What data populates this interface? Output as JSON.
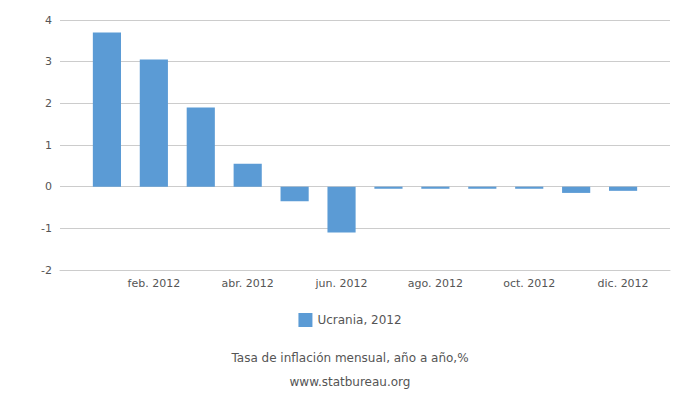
{
  "chart_data": {
    "type": "bar",
    "x": [
      1,
      2,
      3,
      4,
      5,
      6,
      7,
      8,
      9,
      10,
      11,
      12
    ],
    "series": [
      {
        "name": "Ucrania, 2012",
        "color": "#5b9bd5",
        "values": [
          3.7,
          3.05,
          1.9,
          0.55,
          -0.35,
          -1.1,
          -0.05,
          -0.05,
          -0.05,
          -0.05,
          -0.15,
          -0.1
        ]
      }
    ],
    "xlim": [
      0,
      13
    ],
    "xticks": [
      {
        "value": 2,
        "label": "feb. 2012"
      },
      {
        "value": 4,
        "label": "abr. 2012"
      },
      {
        "value": 6,
        "label": "jun. 2012"
      },
      {
        "value": 8,
        "label": "ago. 2012"
      },
      {
        "value": 10,
        "label": "oct. 2012"
      },
      {
        "value": 12,
        "label": "dic. 2012"
      }
    ],
    "ylim": [
      -2,
      4
    ],
    "yticks": [
      -2,
      -1,
      0,
      1,
      2,
      3,
      4
    ],
    "grid": true,
    "legend": "bottom",
    "annotations": [
      "Tasa de inflación mensual, año a año,%",
      "www.statbureau.org"
    ]
  }
}
